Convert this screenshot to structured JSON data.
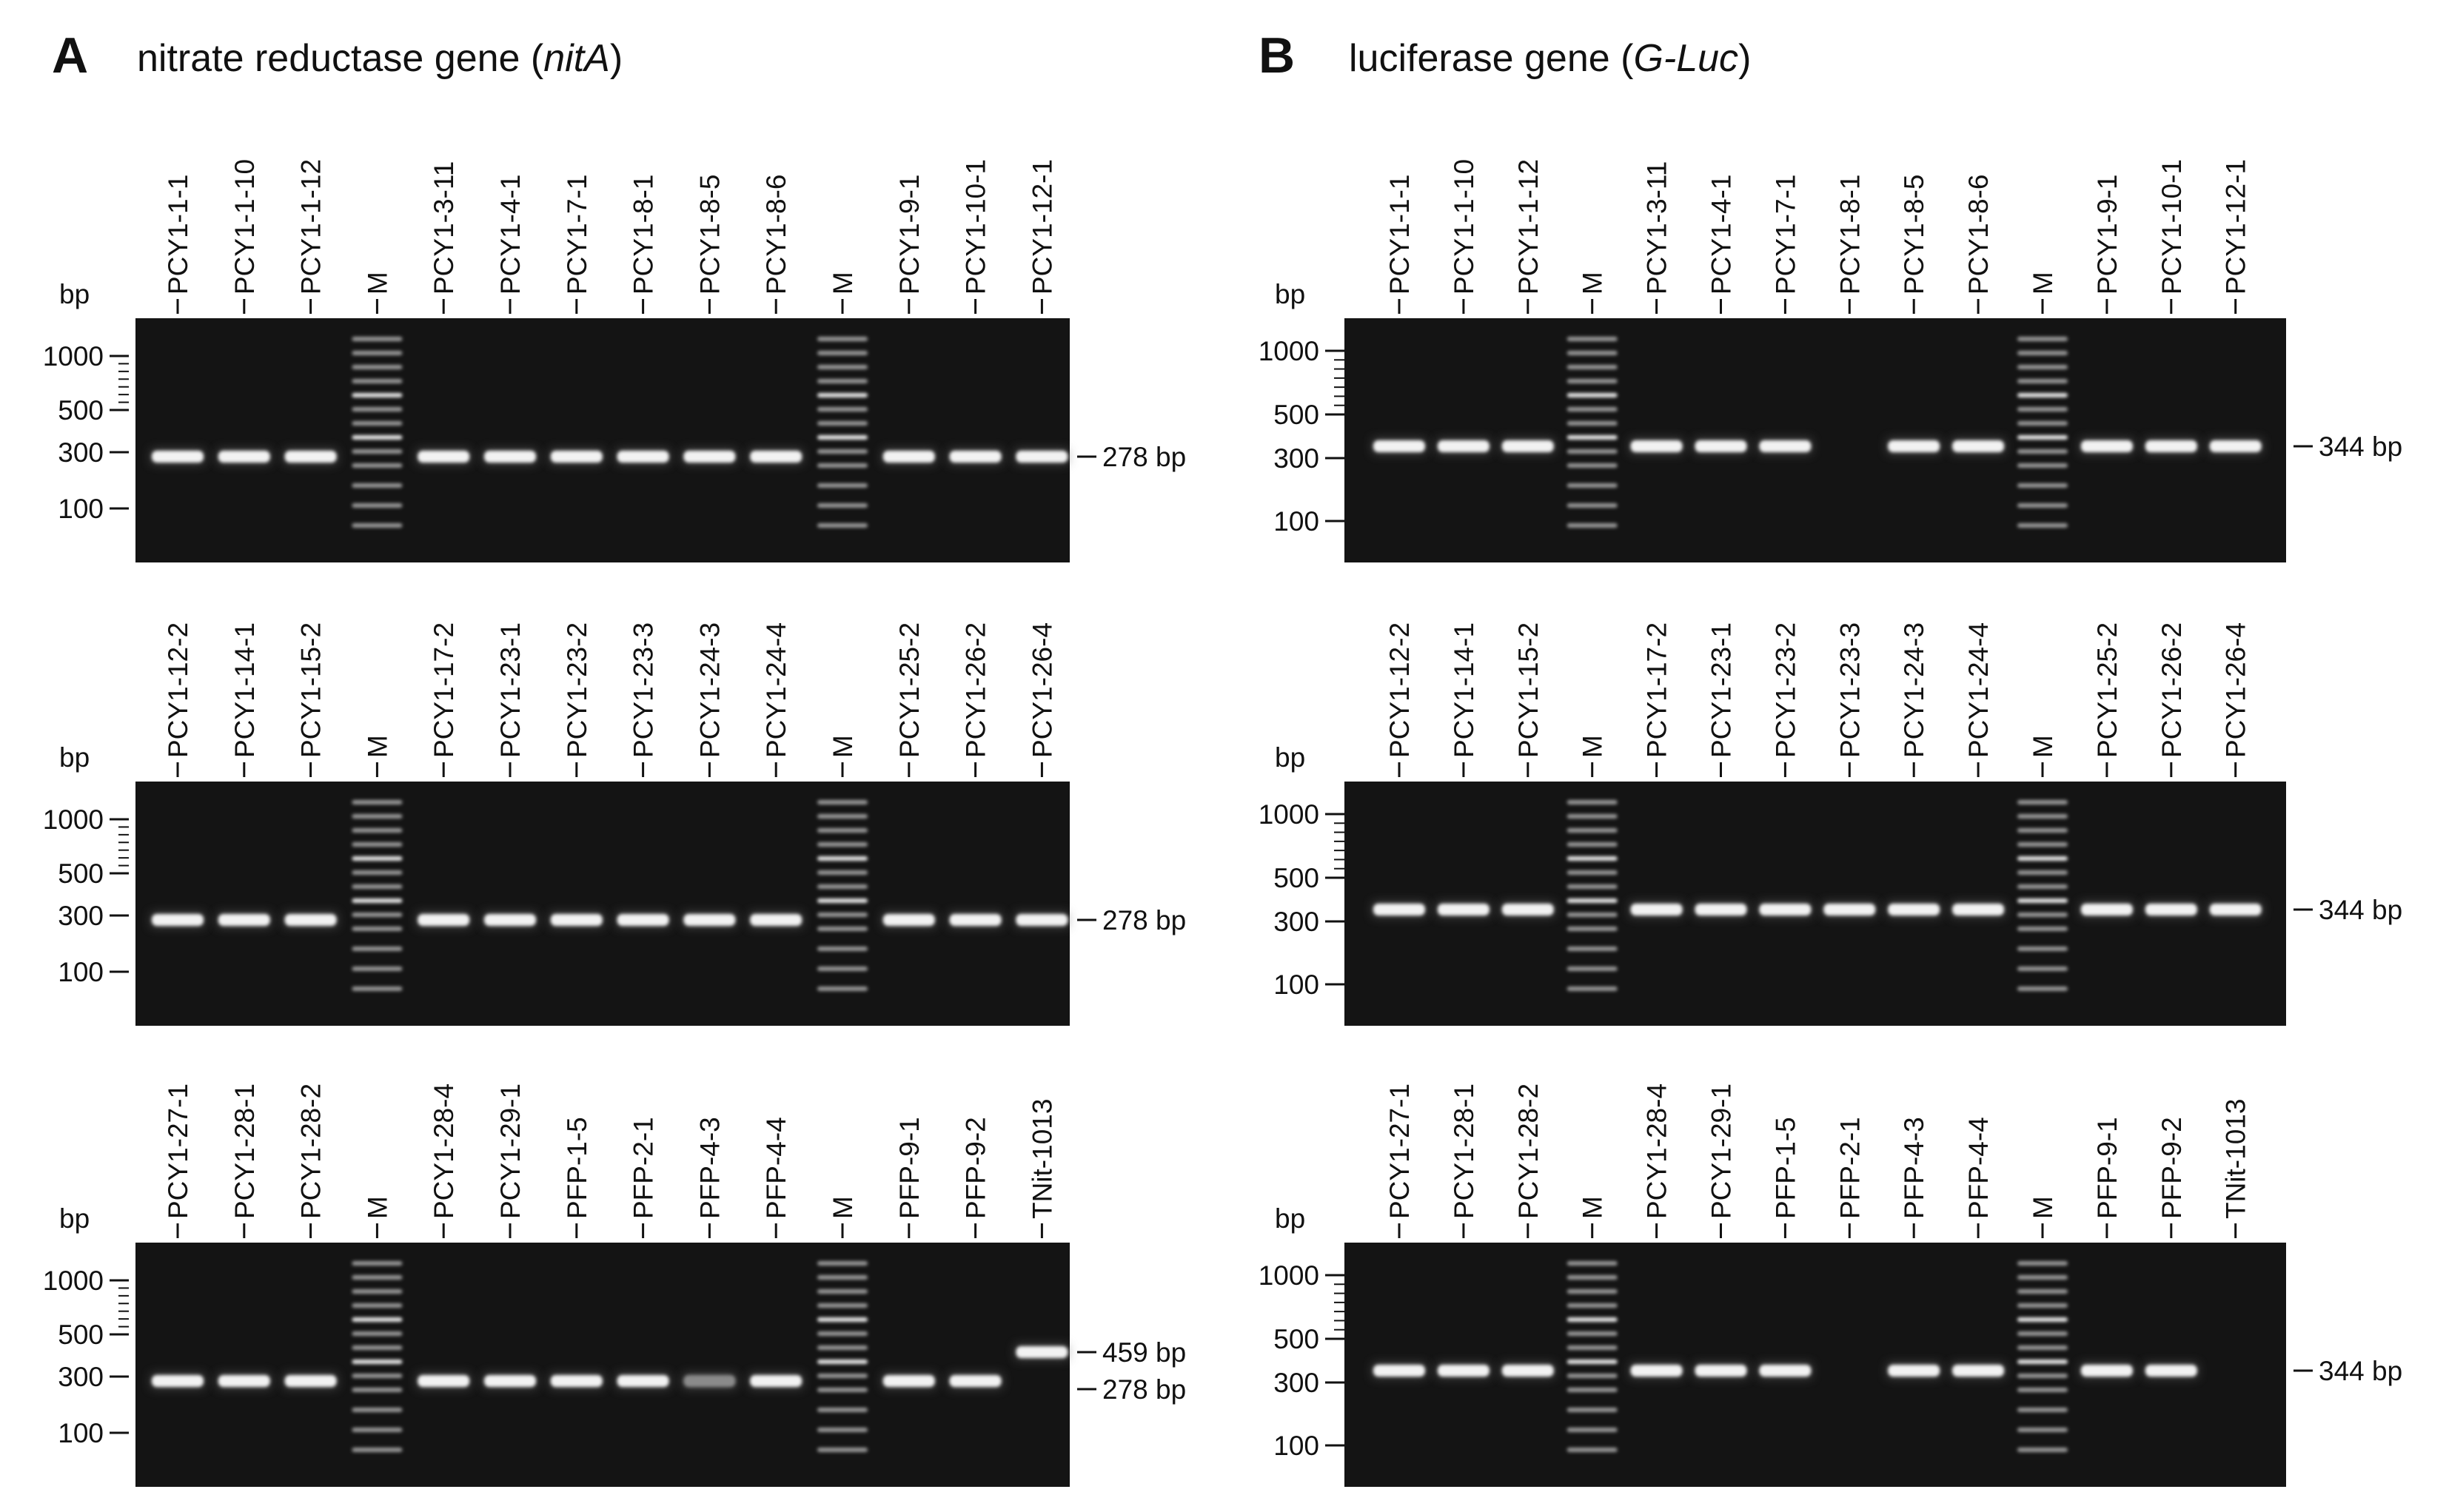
{
  "panels": [
    {
      "letter": "A",
      "title": "nitrate reductase gene (",
      "title_italic": "nitA",
      "title_end": ")",
      "gels": [
        {
          "unit": "bp",
          "size_markers": [
            "1000",
            "500",
            "300",
            "100"
          ],
          "lanes": [
            "PCY1-1-1",
            "PCY1-1-10",
            "PCY1-1-12",
            "M",
            "PCY1-3-11",
            "PCY1-4-1",
            "PCY1-7-1",
            "PCY1-8-1",
            "PCY1-8-5",
            "PCY1-8-6",
            "M",
            "PCY1-9-1",
            "PCY1-10-1",
            "PCY1-12-1"
          ],
          "annotations": [
            "278 bp"
          ]
        },
        {
          "unit": "bp",
          "size_markers": [
            "1000",
            "500",
            "300",
            "100"
          ],
          "lanes": [
            "PCY1-12-2",
            "PCY1-14-1",
            "PCY1-15-2",
            "M",
            "PCY1-17-2",
            "PCY1-23-1",
            "PCY1-23-2",
            "PCY1-23-3",
            "PCY1-24-3",
            "PCY1-24-4",
            "M",
            "PCY1-25-2",
            "PCY1-26-2",
            "PCY1-26-4"
          ],
          "annotations": [
            "278 bp"
          ]
        },
        {
          "unit": "bp",
          "size_markers": [
            "1000",
            "500",
            "300",
            "100"
          ],
          "lanes": [
            "PCY1-27-1",
            "PCY1-28-1",
            "PCY1-28-2",
            "M",
            "PCY1-28-4",
            "PCY1-29-1",
            "PFP-1-5",
            "PFP-2-1",
            "PFP-4-3",
            "PFP-4-4",
            "M",
            "PFP-9-1",
            "PFP-9-2",
            "TNit-1013"
          ],
          "annotations": [
            "459 bp",
            "278 bp"
          ]
        }
      ]
    },
    {
      "letter": "B",
      "title": "luciferase gene (",
      "title_italic": "G-Luc",
      "title_end": ")",
      "gels": [
        {
          "unit": "bp",
          "size_markers": [
            "1000",
            "500",
            "300",
            "100"
          ],
          "lanes": [
            "PCY1-1-1",
            "PCY1-1-10",
            "PCY1-1-12",
            "M",
            "PCY1-3-11",
            "PCY1-4-1",
            "PCY1-7-1",
            "PCY1-8-1",
            "PCY1-8-5",
            "PCY1-8-6",
            "M",
            "PCY1-9-1",
            "PCY1-10-1",
            "PCY1-12-1"
          ],
          "annotations": [
            "344 bp"
          ]
        },
        {
          "unit": "bp",
          "size_markers": [
            "1000",
            "500",
            "300",
            "100"
          ],
          "lanes": [
            "PCY1-12-2",
            "PCY1-14-1",
            "PCY1-15-2",
            "M",
            "PCY1-17-2",
            "PCY1-23-1",
            "PCY1-23-2",
            "PCY1-23-3",
            "PCY1-24-3",
            "PCY1-24-4",
            "M",
            "PCY1-25-2",
            "PCY1-26-2",
            "PCY1-26-4"
          ],
          "annotations": [
            "344 bp"
          ]
        },
        {
          "unit": "bp",
          "size_markers": [
            "1000",
            "500",
            "300",
            "100"
          ],
          "lanes": [
            "PCY1-27-1",
            "PCY1-28-1",
            "PCY1-28-2",
            "M",
            "PCY1-28-4",
            "PCY1-29-1",
            "PFP-1-5",
            "PFP-2-1",
            "PFP-4-3",
            "PFP-4-4",
            "M",
            "PFP-9-1",
            "PFP-9-2",
            "TNit-1013"
          ],
          "annotations": [
            "344 bp"
          ]
        }
      ]
    }
  ]
}
